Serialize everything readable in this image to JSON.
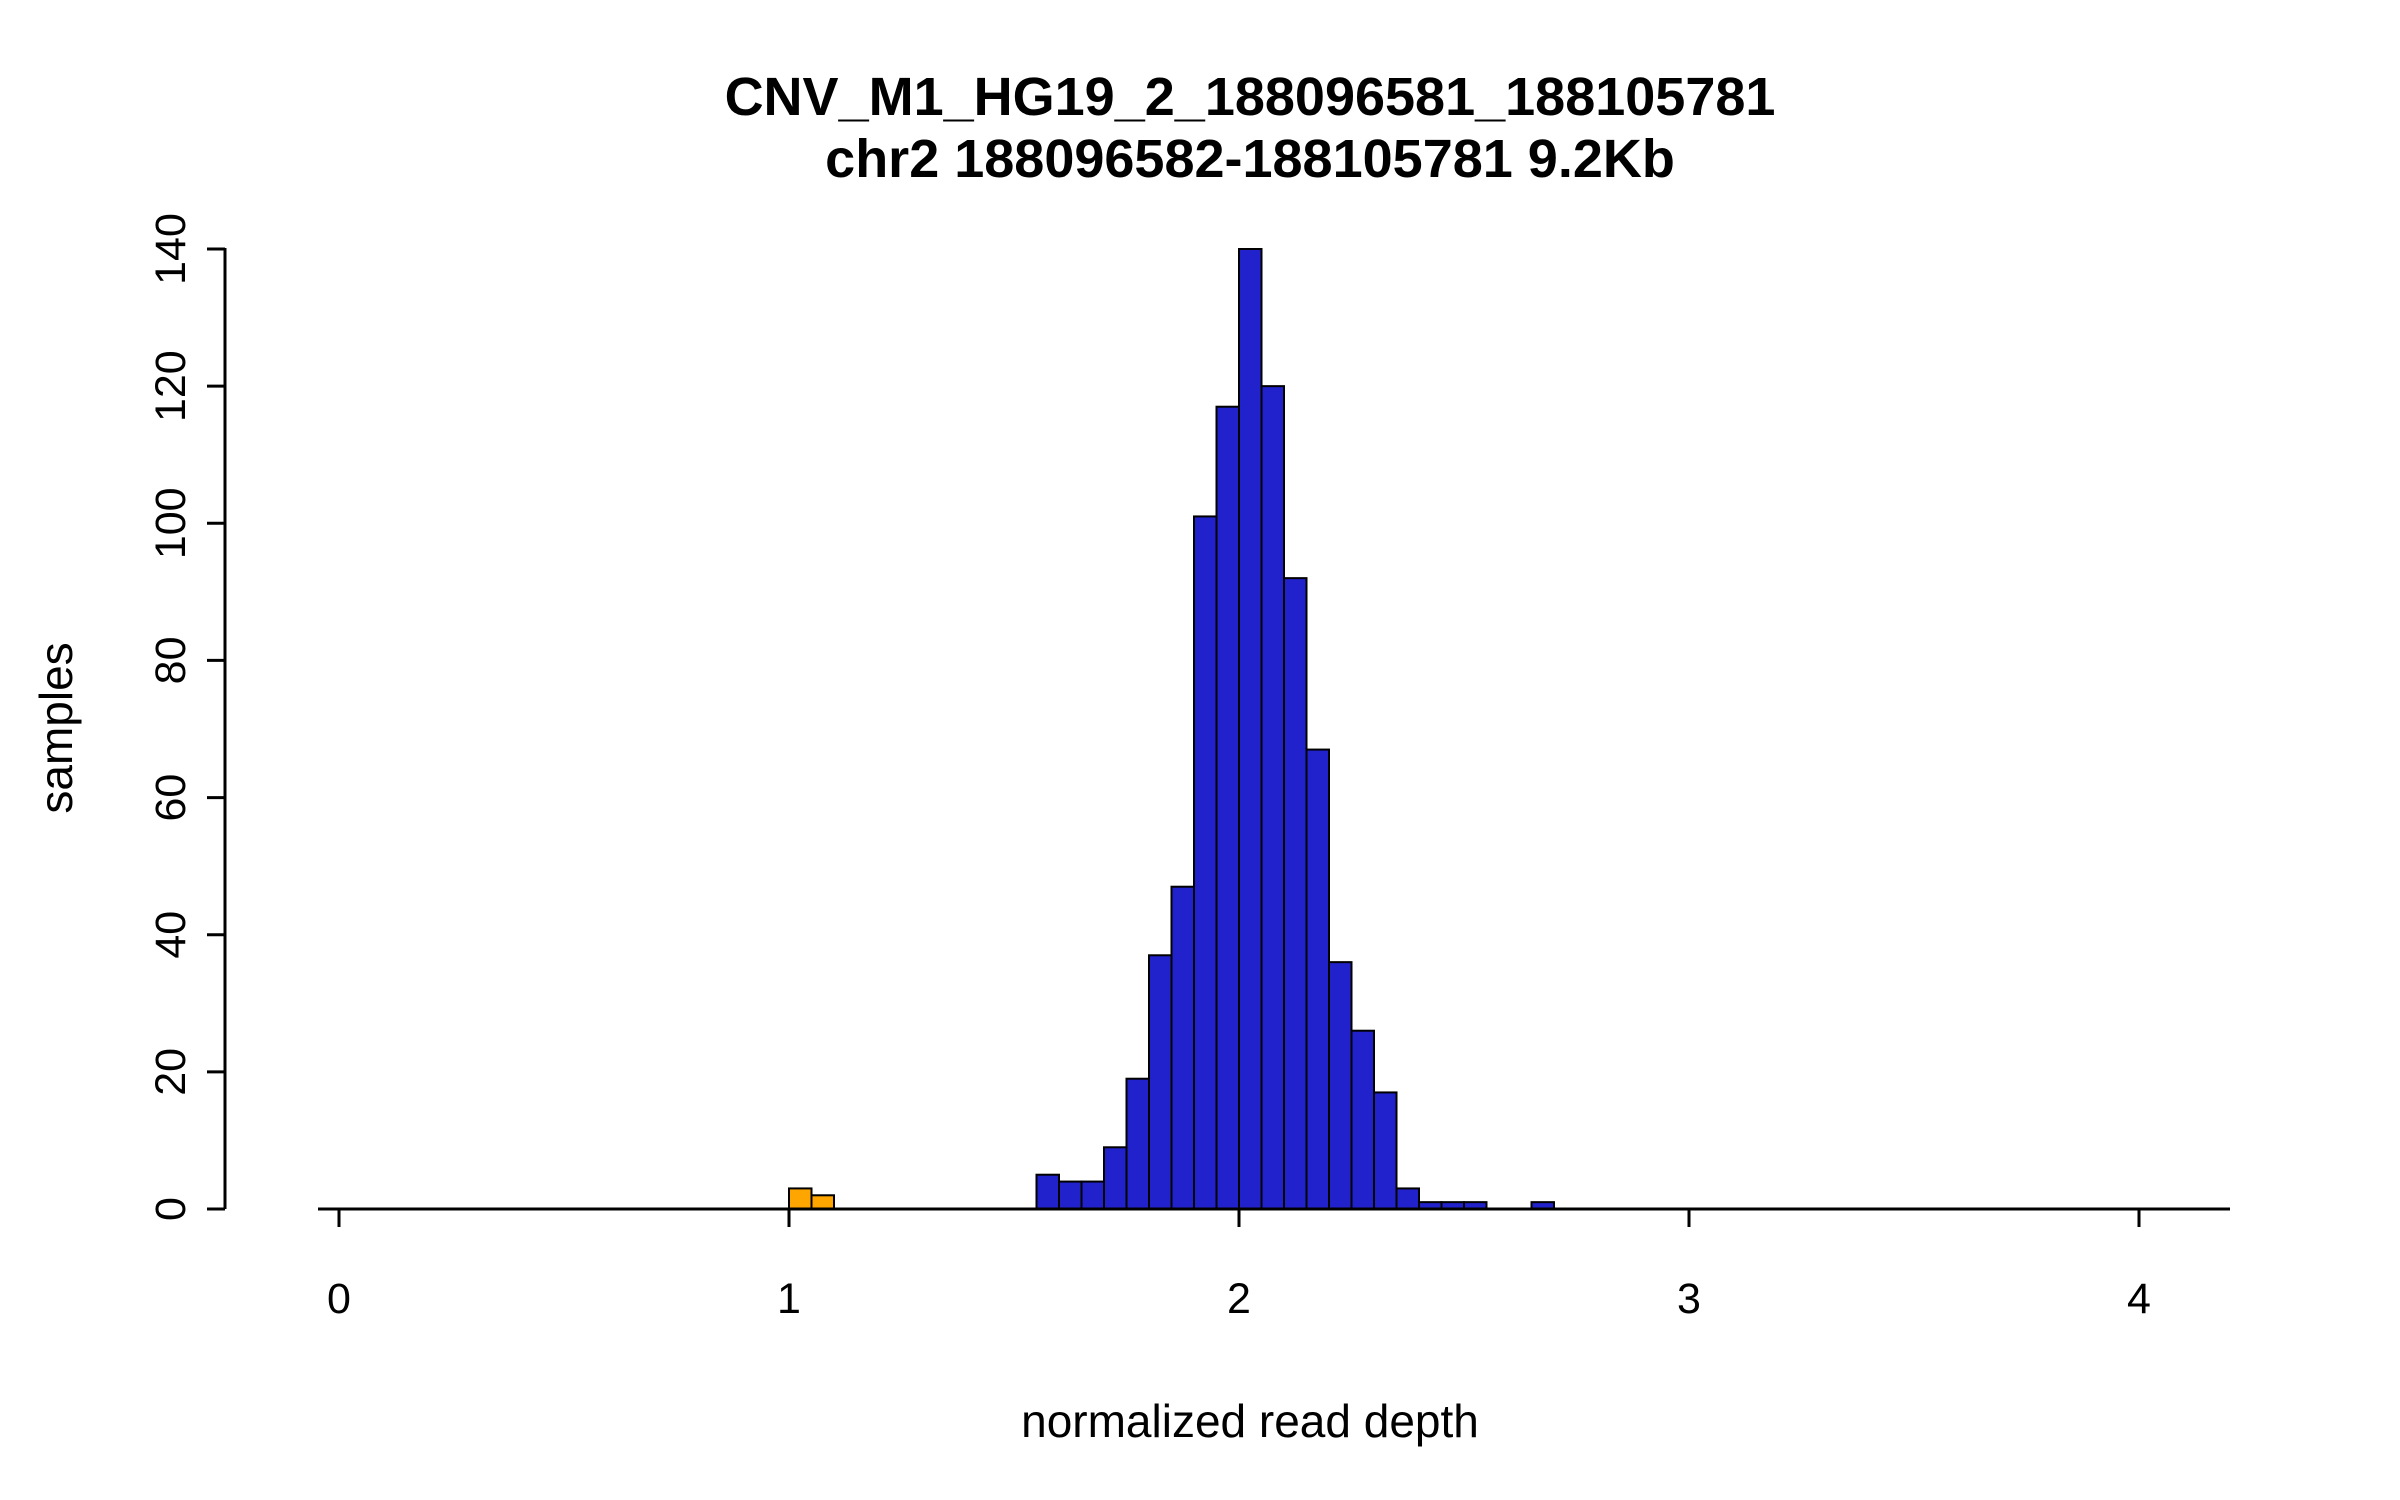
{
  "chart_data": {
    "type": "bar",
    "chart_kind": "histogram",
    "title": "CNV_M1_HG19_2_188096581_188105781",
    "subtitle": "chr2 188096582-188105781 9.2Kb",
    "xlabel": "normalized read depth",
    "ylabel": "samples",
    "x_ticks": [
      0,
      1,
      2,
      3,
      4
    ],
    "y_ticks": [
      0,
      20,
      40,
      60,
      80,
      100,
      120,
      140
    ],
    "xlim": [
      -0.25,
      4.2
    ],
    "ylim": [
      0,
      140
    ],
    "grid": false,
    "legend_position": "none",
    "bin_width": 0.05,
    "bars": [
      {
        "x": 1.0,
        "height": 3,
        "color": "orange"
      },
      {
        "x": 1.05,
        "height": 2,
        "color": "orange"
      },
      {
        "x": 1.55,
        "height": 5,
        "color": "blue"
      },
      {
        "x": 1.6,
        "height": 4,
        "color": "blue"
      },
      {
        "x": 1.65,
        "height": 4,
        "color": "blue"
      },
      {
        "x": 1.7,
        "height": 9,
        "color": "blue"
      },
      {
        "x": 1.75,
        "height": 19,
        "color": "blue"
      },
      {
        "x": 1.8,
        "height": 37,
        "color": "blue"
      },
      {
        "x": 1.85,
        "height": 47,
        "color": "blue"
      },
      {
        "x": 1.9,
        "height": 101,
        "color": "blue"
      },
      {
        "x": 1.95,
        "height": 117,
        "color": "blue"
      },
      {
        "x": 2.0,
        "height": 140,
        "color": "blue"
      },
      {
        "x": 2.05,
        "height": 120,
        "color": "blue"
      },
      {
        "x": 2.1,
        "height": 92,
        "color": "blue"
      },
      {
        "x": 2.15,
        "height": 67,
        "color": "blue"
      },
      {
        "x": 2.2,
        "height": 36,
        "color": "blue"
      },
      {
        "x": 2.25,
        "height": 26,
        "color": "blue"
      },
      {
        "x": 2.3,
        "height": 17,
        "color": "blue"
      },
      {
        "x": 2.35,
        "height": 3,
        "color": "blue"
      },
      {
        "x": 2.4,
        "height": 1,
        "color": "blue"
      },
      {
        "x": 2.45,
        "height": 1,
        "color": "blue"
      },
      {
        "x": 2.5,
        "height": 1,
        "color": "blue"
      },
      {
        "x": 2.65,
        "height": 1,
        "color": "blue"
      }
    ],
    "colors": {
      "blue": "#2222CC",
      "orange": "#FFA500",
      "border": "#000000",
      "background": "#FFFFFF"
    }
  }
}
